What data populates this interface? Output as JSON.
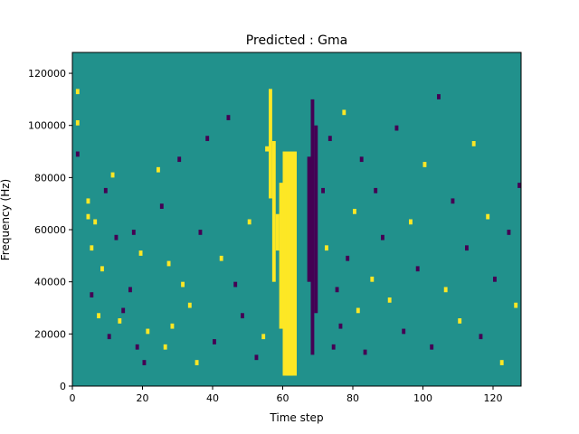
{
  "chart_data": {
    "type": "heatmap",
    "title": "Predicted : Gma",
    "xlabel": "Time step",
    "ylabel": "Frequency (Hz)",
    "xlim": [
      0,
      128
    ],
    "ylim": [
      0,
      128000
    ],
    "xticks": [
      0,
      20,
      40,
      60,
      80,
      100,
      120
    ],
    "yticks": [
      0,
      20000,
      40000,
      60000,
      80000,
      100000,
      120000
    ],
    "grid": false,
    "legend": "none",
    "background_value": 0,
    "levels": [
      -1,
      0,
      1
    ],
    "colors": {
      "-1": "#440154",
      "0": "#21918c",
      "1": "#fde725"
    },
    "frame_color": "#000000",
    "y_bins": 64,
    "y_bin_width": 2000,
    "feature": [
      {
        "x": [
          60,
          64
        ],
        "y": [
          4000,
          90000
        ],
        "value": 1
      },
      {
        "x": [
          61,
          63
        ],
        "y": [
          4000,
          86000
        ],
        "value": 1
      },
      {
        "x": [
          68,
          69
        ],
        "y": [
          12000,
          110000
        ],
        "value": -1
      },
      {
        "x": [
          69,
          70
        ],
        "y": [
          28000,
          100000
        ],
        "value": -1
      },
      {
        "x": [
          56,
          57
        ],
        "y": [
          72000,
          114000
        ],
        "value": 1
      },
      {
        "x": [
          57,
          58
        ],
        "y": [
          40000,
          94000
        ],
        "value": 1
      },
      {
        "x": [
          58,
          59
        ],
        "y": [
          52000,
          66000
        ],
        "value": 1
      },
      {
        "x": [
          59,
          60
        ],
        "y": [
          22000,
          78000
        ],
        "value": 1
      },
      {
        "x": [
          67,
          68
        ],
        "y": [
          40000,
          88000
        ],
        "value": -1
      }
    ],
    "scatter": [
      {
        "t": 1,
        "f": 112000,
        "v": 1
      },
      {
        "t": 1,
        "f": 100000,
        "v": 1
      },
      {
        "t": 1,
        "f": 88000,
        "v": -1
      },
      {
        "t": 4,
        "f": 70000,
        "v": 1
      },
      {
        "t": 4,
        "f": 64000,
        "v": 1
      },
      {
        "t": 5,
        "f": 52000,
        "v": 1
      },
      {
        "t": 5,
        "f": 34000,
        "v": -1
      },
      {
        "t": 6,
        "f": 62000,
        "v": 1
      },
      {
        "t": 7,
        "f": 26000,
        "v": 1
      },
      {
        "t": 8,
        "f": 44000,
        "v": 1
      },
      {
        "t": 9,
        "f": 74000,
        "v": -1
      },
      {
        "t": 10,
        "f": 18000,
        "v": -1
      },
      {
        "t": 11,
        "f": 80000,
        "v": 1
      },
      {
        "t": 12,
        "f": 56000,
        "v": -1
      },
      {
        "t": 13,
        "f": 24000,
        "v": 1
      },
      {
        "t": 14,
        "f": 28000,
        "v": -1
      },
      {
        "t": 16,
        "f": 36000,
        "v": -1
      },
      {
        "t": 17,
        "f": 58000,
        "v": -1
      },
      {
        "t": 18,
        "f": 14000,
        "v": -1
      },
      {
        "t": 19,
        "f": 50000,
        "v": 1
      },
      {
        "t": 20,
        "f": 8000,
        "v": -1
      },
      {
        "t": 21,
        "f": 20000,
        "v": 1
      },
      {
        "t": 24,
        "f": 82000,
        "v": 1
      },
      {
        "t": 25,
        "f": 68000,
        "v": -1
      },
      {
        "t": 26,
        "f": 14000,
        "v": 1
      },
      {
        "t": 27,
        "f": 46000,
        "v": 1
      },
      {
        "t": 28,
        "f": 22000,
        "v": 1
      },
      {
        "t": 30,
        "f": 86000,
        "v": -1
      },
      {
        "t": 31,
        "f": 38000,
        "v": 1
      },
      {
        "t": 33,
        "f": 30000,
        "v": 1
      },
      {
        "t": 35,
        "f": 8000,
        "v": 1
      },
      {
        "t": 36,
        "f": 58000,
        "v": -1
      },
      {
        "t": 38,
        "f": 94000,
        "v": -1
      },
      {
        "t": 40,
        "f": 16000,
        "v": -1
      },
      {
        "t": 42,
        "f": 48000,
        "v": 1
      },
      {
        "t": 44,
        "f": 102000,
        "v": -1
      },
      {
        "t": 46,
        "f": 38000,
        "v": -1
      },
      {
        "t": 48,
        "f": 26000,
        "v": -1
      },
      {
        "t": 50,
        "f": 62000,
        "v": 1
      },
      {
        "t": 52,
        "f": 10000,
        "v": -1
      },
      {
        "t": 54,
        "f": 18000,
        "v": 1
      },
      {
        "t": 55,
        "f": 90000,
        "v": 1
      },
      {
        "t": 71,
        "f": 74000,
        "v": -1
      },
      {
        "t": 72,
        "f": 52000,
        "v": 1
      },
      {
        "t": 73,
        "f": 94000,
        "v": -1
      },
      {
        "t": 74,
        "f": 14000,
        "v": -1
      },
      {
        "t": 75,
        "f": 36000,
        "v": -1
      },
      {
        "t": 76,
        "f": 22000,
        "v": -1
      },
      {
        "t": 77,
        "f": 104000,
        "v": 1
      },
      {
        "t": 78,
        "f": 48000,
        "v": -1
      },
      {
        "t": 80,
        "f": 66000,
        "v": 1
      },
      {
        "t": 81,
        "f": 28000,
        "v": 1
      },
      {
        "t": 82,
        "f": 86000,
        "v": -1
      },
      {
        "t": 83,
        "f": 12000,
        "v": -1
      },
      {
        "t": 85,
        "f": 40000,
        "v": 1
      },
      {
        "t": 86,
        "f": 74000,
        "v": -1
      },
      {
        "t": 88,
        "f": 56000,
        "v": -1
      },
      {
        "t": 90,
        "f": 32000,
        "v": 1
      },
      {
        "t": 92,
        "f": 98000,
        "v": -1
      },
      {
        "t": 94,
        "f": 20000,
        "v": -1
      },
      {
        "t": 96,
        "f": 62000,
        "v": 1
      },
      {
        "t": 98,
        "f": 44000,
        "v": -1
      },
      {
        "t": 100,
        "f": 84000,
        "v": 1
      },
      {
        "t": 102,
        "f": 14000,
        "v": -1
      },
      {
        "t": 104,
        "f": 110000,
        "v": -1
      },
      {
        "t": 106,
        "f": 36000,
        "v": 1
      },
      {
        "t": 108,
        "f": 70000,
        "v": -1
      },
      {
        "t": 110,
        "f": 24000,
        "v": 1
      },
      {
        "t": 112,
        "f": 52000,
        "v": -1
      },
      {
        "t": 114,
        "f": 92000,
        "v": 1
      },
      {
        "t": 116,
        "f": 18000,
        "v": -1
      },
      {
        "t": 118,
        "f": 64000,
        "v": 1
      },
      {
        "t": 120,
        "f": 40000,
        "v": -1
      },
      {
        "t": 122,
        "f": 8000,
        "v": 1
      },
      {
        "t": 124,
        "f": 58000,
        "v": -1
      },
      {
        "t": 126,
        "f": 30000,
        "v": 1
      },
      {
        "t": 127,
        "f": 76000,
        "v": -1
      }
    ]
  }
}
